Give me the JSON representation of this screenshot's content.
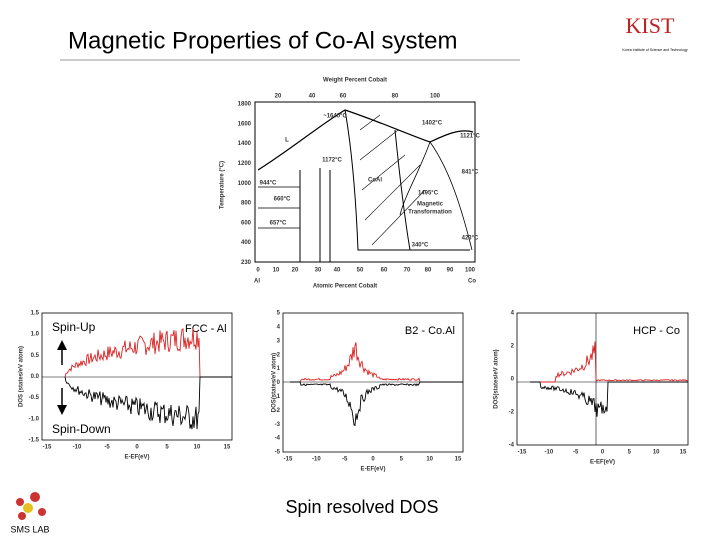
{
  "title": "Magnetic Properties of Co-Al system",
  "logo": {
    "text": "KIST",
    "subtitle": "Korea Institute of Science and Technology"
  },
  "phase_diagram": {
    "top_axis_title": "Weight Percent Cobalt",
    "top_ticks": [
      "20",
      "40",
      "60",
      "80",
      "100"
    ],
    "y_axis_title": "Temperature (°C)",
    "y_ticks": [
      "1800",
      "1600",
      "1400",
      "1200",
      "1000",
      "800",
      "600",
      "400",
      "230"
    ],
    "x_axis_title": "Atomic Percent Cobalt",
    "x_ticks": [
      "0",
      "10",
      "20",
      "30",
      "40",
      "50",
      "60",
      "70",
      "80",
      "90",
      "100"
    ],
    "x_end_labels": [
      "Al",
      "Co"
    ],
    "annotations": [
      "~1640°C",
      "1402°C",
      "1121°C",
      "L",
      "1172°C",
      "944°C",
      "CoAl",
      "841°C",
      "660°C",
      "1495°C",
      "Magnetic",
      "Transformation",
      "657°C",
      "423°C",
      "340°C"
    ]
  },
  "spin_up": "Spin-Up",
  "spin_down": "Spin-Down",
  "dos_panels": [
    {
      "label": "FCC - Al",
      "y_axis_title": "DOS (states/eV atom)",
      "x_axis_title": "E-EF(eV)",
      "y_ticks": [
        "1.5",
        "1.0",
        "0.5",
        "0.0",
        "-0.5",
        "-1.0",
        "-1.5"
      ],
      "x_ticks": [
        "-15",
        "-10",
        "-5",
        "0",
        "5",
        "10",
        "15"
      ]
    },
    {
      "label": "B2 - Co.Al",
      "y_axis_title": "DOS(states/eV atom)",
      "x_axis_title": "E-EF(eV)",
      "y_ticks": [
        "5",
        "4",
        "3",
        "2",
        "1",
        "0",
        "-1",
        "-2",
        "-3",
        "-4",
        "-5"
      ],
      "x_ticks": [
        "-15",
        "-10",
        "-5",
        "0",
        "5",
        "10",
        "15"
      ]
    },
    {
      "label": "HCP - Co",
      "y_axis_title": "DOS(states/eV atom)",
      "x_axis_title": "E-EF(eV)",
      "y_ticks": [
        "4",
        "2",
        "0",
        "-2",
        "-4"
      ],
      "x_ticks": [
        "-15",
        "-10",
        "-5",
        "0",
        "5",
        "10",
        "15"
      ]
    }
  ],
  "caption": "Spin resolved DOS",
  "lab": "SMS LAB"
}
